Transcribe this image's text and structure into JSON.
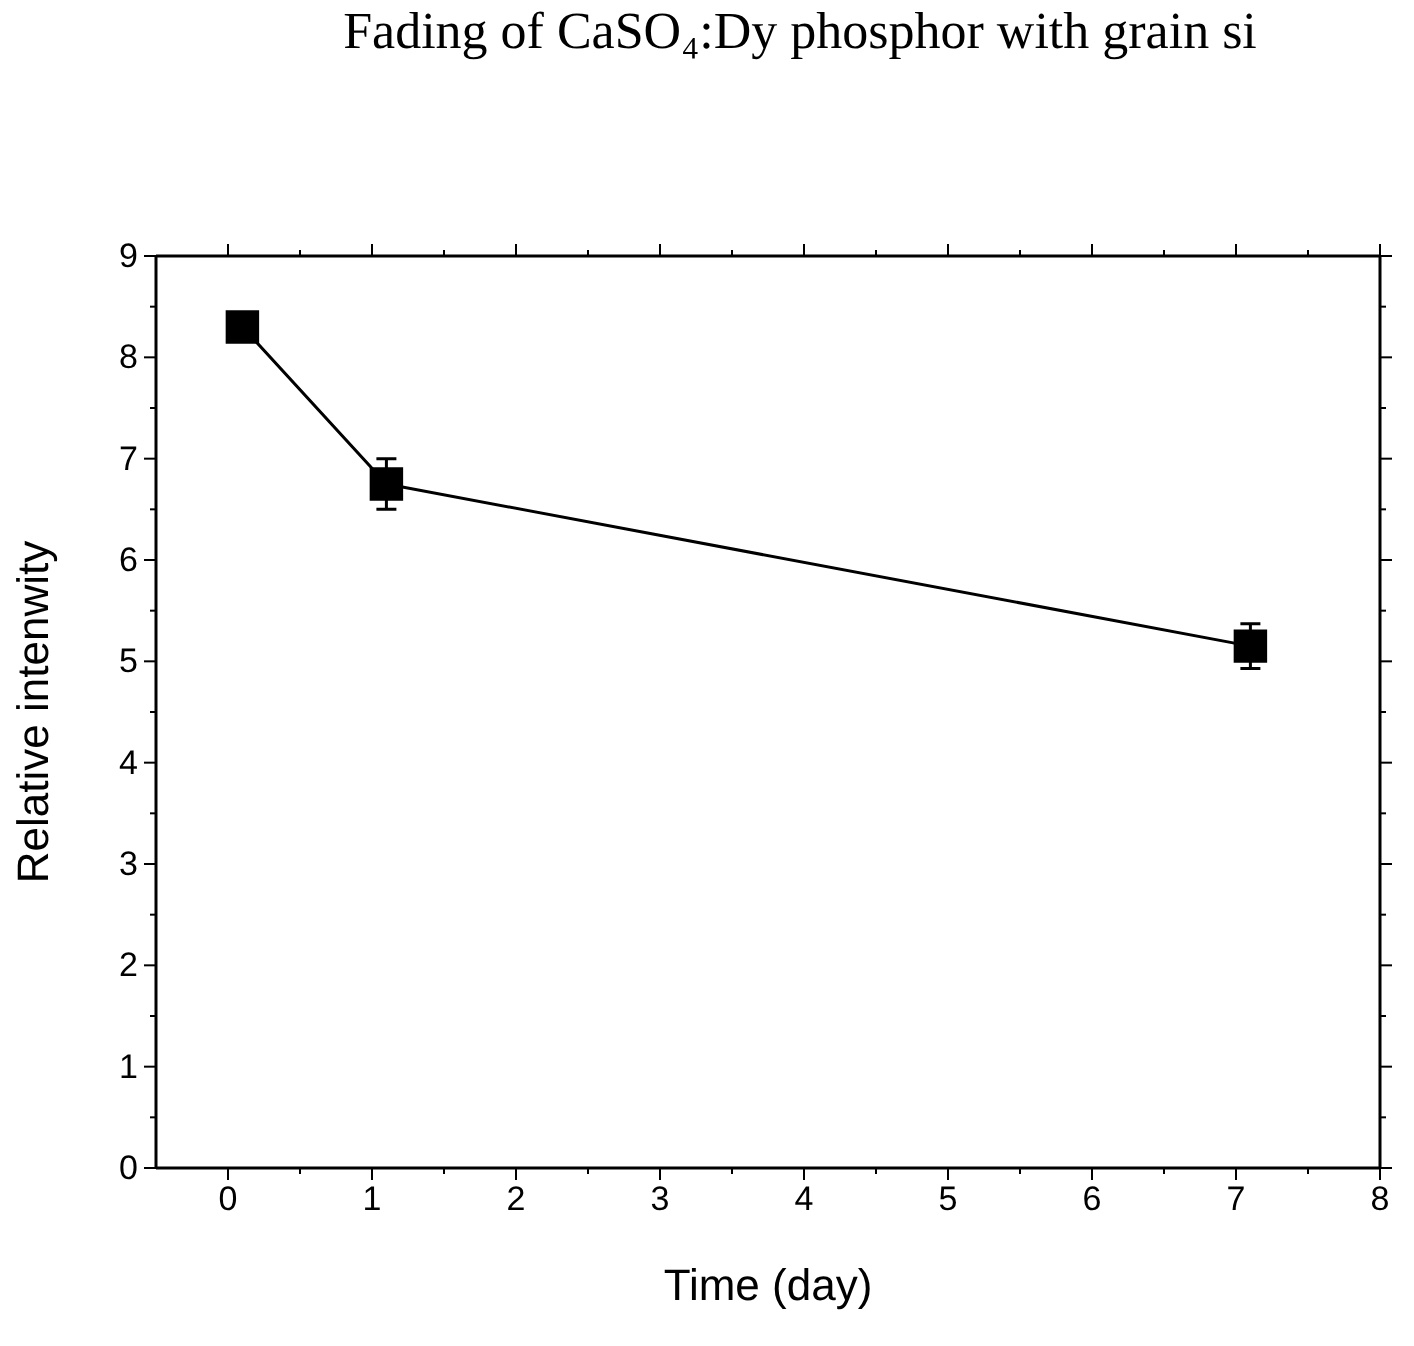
{
  "chart_data": {
    "type": "line",
    "title": "Fading of CaSO₄:Dy phosphor with grain si",
    "xlabel": "Time (day)",
    "ylabel": "Relative intenwity",
    "x": [
      0.1,
      1.1,
      7.1
    ],
    "series": [
      {
        "color": "#000000",
        "values": [
          8.3,
          6.75,
          5.15
        ],
        "errors": [
          null,
          0.25,
          0.22
        ]
      }
    ],
    "xlim": [
      -0.5,
      8
    ],
    "xticks": [
      0,
      1,
      2,
      3,
      4,
      5,
      6,
      7,
      8
    ],
    "ylim": [
      0,
      9
    ],
    "yticks": [
      0,
      1,
      2,
      3,
      4,
      5,
      6,
      7,
      8,
      9
    ],
    "marker": "square",
    "line_style": "solid"
  }
}
